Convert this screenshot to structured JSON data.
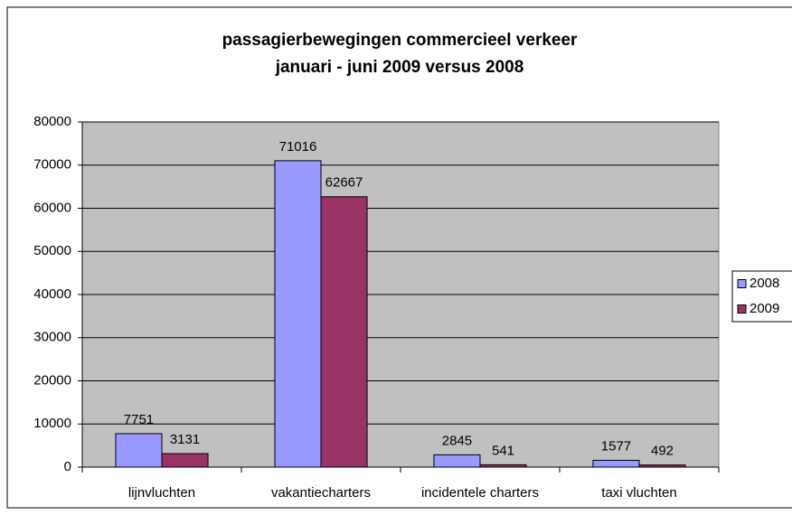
{
  "chart_data": {
    "type": "bar",
    "title": [
      "passagierbewegingen commercieel verkeer",
      "januari - juni  2009 versus 2008"
    ],
    "categories": [
      "lijnvluchten",
      "vakantiecharters",
      "incidentele charters",
      "taxi vluchten"
    ],
    "series": [
      {
        "name": "2008",
        "color": "#9999ff",
        "values": [
          7751,
          71016,
          2845,
          1577
        ]
      },
      {
        "name": "2009",
        "color": "#993366",
        "values": [
          3131,
          62667,
          541,
          492
        ]
      }
    ],
    "ylim": [
      0,
      80000
    ],
    "yticks": [
      0,
      10000,
      20000,
      30000,
      40000,
      50000,
      60000,
      70000,
      80000
    ],
    "grid": true,
    "legend": "right"
  }
}
